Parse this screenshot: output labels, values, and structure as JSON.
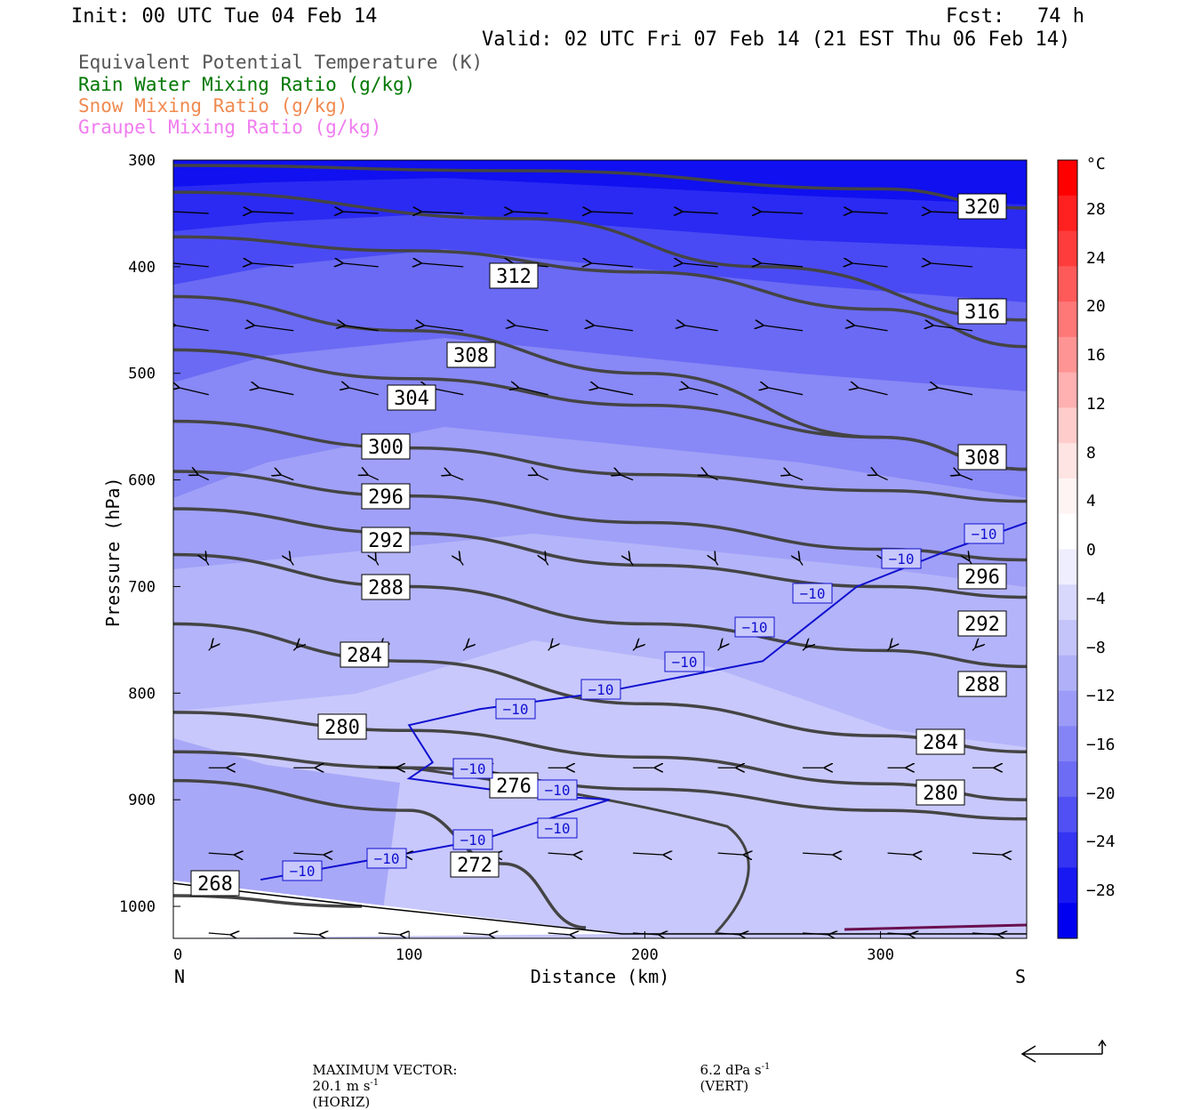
{
  "header": {
    "init": "Init: 00 UTC Tue 04 Feb 14",
    "fcst_label": "Fcst:",
    "fcst_value": "74 h",
    "valid": "Valid: 02 UTC Fri 07 Feb 14 (21 EST Thu 06 Feb 14)"
  },
  "legend": {
    "theta_e": "Equivalent Potential Temperature (K)",
    "rain": "Rain Water Mixing Ratio (g/kg)",
    "snow": "Snow Mixing Ratio (g/kg)",
    "graupel": "Graupel Mixing Ratio (g/kg)",
    "colors": {
      "theta_e": "#555555",
      "rain": "#007700",
      "snow": "#f08a50",
      "graupel": "#f07cf0",
      "isotherm": "#1010d0"
    }
  },
  "footer": {
    "max_vector_label": "MAXIMUM VECTOR:",
    "horiz": "20.1 m s",
    "horiz_exp": "-1",
    "horiz_unit": "(HORIZ)",
    "vert": "6.2 dPa s",
    "vert_exp": "-1",
    "vert_unit": "(VERT)"
  },
  "chart_data": {
    "type": "cross-section",
    "xlabel": "Distance (km)",
    "ylabel": "Pressure (hPa)",
    "x_start_label": "N",
    "x_end_label": "S",
    "xlim": [
      0,
      362
    ],
    "ylim": [
      1030,
      300
    ],
    "y_ticks": [
      300,
      400,
      500,
      600,
      700,
      800,
      900,
      1000
    ],
    "x_ticks": [
      0,
      100,
      200,
      300
    ],
    "colorbar": {
      "unit": "°C",
      "tick_labels": [
        28,
        24,
        20,
        16,
        12,
        8,
        4,
        0,
        -4,
        -8,
        -12,
        -16,
        -20,
        -24,
        -28
      ],
      "interval": 4
    },
    "theta_e_contours": [
      {
        "value": 320,
        "points": [
          [
            0,
            305
          ],
          [
            150,
            310
          ],
          [
            300,
            327
          ],
          [
            362,
            345
          ]
        ]
      },
      {
        "value": 316,
        "points": [
          [
            0,
            330
          ],
          [
            150,
            355
          ],
          [
            250,
            400
          ],
          [
            362,
            450
          ]
        ]
      },
      {
        "value": 312,
        "points": [
          [
            0,
            372
          ],
          [
            100,
            385
          ],
          [
            200,
            405
          ],
          [
            300,
            440
          ],
          [
            362,
            475
          ]
        ]
      },
      {
        "value": 308,
        "points": [
          [
            0,
            428
          ],
          [
            100,
            460
          ],
          [
            200,
            500
          ],
          [
            300,
            560
          ],
          [
            362,
            590
          ]
        ]
      },
      {
        "value": 304,
        "points": [
          [
            0,
            478
          ],
          [
            100,
            505
          ],
          [
            200,
            530
          ],
          [
            300,
            560
          ],
          [
            362,
            590
          ]
        ]
      },
      {
        "value": 300,
        "points": [
          [
            0,
            545
          ],
          [
            100,
            570
          ],
          [
            200,
            595
          ],
          [
            300,
            610
          ],
          [
            362,
            620
          ]
        ]
      },
      {
        "value": 296,
        "points": [
          [
            0,
            592
          ],
          [
            100,
            615
          ],
          [
            200,
            640
          ],
          [
            300,
            665
          ],
          [
            362,
            675
          ]
        ]
      },
      {
        "value": 292,
        "points": [
          [
            0,
            627
          ],
          [
            100,
            650
          ],
          [
            200,
            680
          ],
          [
            300,
            700
          ],
          [
            362,
            710
          ]
        ]
      },
      {
        "value": 288,
        "points": [
          [
            0,
            670
          ],
          [
            100,
            700
          ],
          [
            200,
            735
          ],
          [
            300,
            760
          ],
          [
            362,
            775
          ]
        ]
      },
      {
        "value": 284,
        "points": [
          [
            0,
            735
          ],
          [
            100,
            770
          ],
          [
            200,
            810
          ],
          [
            300,
            840
          ],
          [
            362,
            855
          ]
        ]
      },
      {
        "value": 280,
        "points": [
          [
            0,
            818
          ],
          [
            100,
            835
          ],
          [
            200,
            860
          ],
          [
            300,
            885
          ],
          [
            362,
            900
          ]
        ]
      },
      {
        "value": 276,
        "points": [
          [
            0,
            855
          ],
          [
            100,
            870
          ],
          [
            200,
            890
          ],
          [
            300,
            910
          ],
          [
            362,
            918
          ]
        ]
      },
      {
        "value": 272,
        "points": [
          [
            0,
            882
          ],
          [
            100,
            910
          ],
          [
            140,
            960
          ],
          [
            175,
            1020
          ]
        ]
      },
      {
        "value": 268,
        "points": [
          [
            0,
            990
          ],
          [
            80,
            1000
          ]
        ]
      }
    ],
    "isotherm_minus10": [
      [
        37,
        975
      ],
      [
        100,
        950
      ],
      [
        130,
        938
      ],
      [
        185,
        900
      ],
      [
        150,
        895
      ],
      [
        100,
        880
      ],
      [
        110,
        865
      ],
      [
        100,
        830
      ],
      [
        130,
        815
      ],
      [
        180,
        800
      ],
      [
        250,
        770
      ],
      [
        290,
        700
      ],
      [
        330,
        665
      ],
      [
        362,
        640
      ]
    ],
    "contour_labels_theta_e": [
      320,
      316,
      312,
      308,
      304,
      300,
      296,
      292,
      288,
      284,
      280,
      276,
      272,
      268
    ],
    "isotherm_labels": [
      -10,
      -10,
      -10,
      -10,
      -10,
      -10,
      -10,
      -10,
      -10,
      -10,
      -10,
      -10,
      -10,
      -10
    ]
  }
}
